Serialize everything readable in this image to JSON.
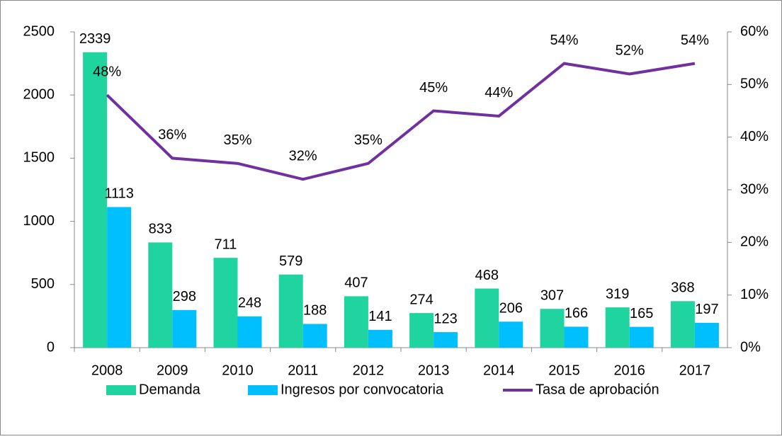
{
  "chart_data": {
    "type": "bar_line",
    "categories": [
      "2008",
      "2009",
      "2010",
      "2011",
      "2012",
      "2013",
      "2014",
      "2015",
      "2016",
      "2017"
    ],
    "series": [
      {
        "name": "Demanda",
        "type": "bar",
        "color": "#1fd49e",
        "values": [
          2339,
          833,
          711,
          579,
          407,
          274,
          468,
          307,
          319,
          368
        ]
      },
      {
        "name": "Ingresos por convocatoria",
        "type": "bar",
        "color": "#00bfff",
        "values": [
          1113,
          298,
          248,
          188,
          141,
          123,
          206,
          166,
          165,
          197
        ]
      },
      {
        "name": "Tasa de aprobación",
        "type": "line",
        "axis": "y2",
        "color": "#7030a0",
        "values": [
          48,
          36,
          35,
          32,
          35,
          45,
          44,
          54,
          52,
          54
        ],
        "value_labels": [
          "48%",
          "36%",
          "35%",
          "32%",
          "35%",
          "45%",
          "44%",
          "54%",
          "52%",
          "54%"
        ]
      }
    ],
    "ylim": [
      0,
      2500
    ],
    "yticks": [
      0,
      500,
      1000,
      1500,
      2000,
      2500
    ],
    "y2lim": [
      0,
      60
    ],
    "y2ticks": [
      {
        "value": 0,
        "label": "0%"
      },
      {
        "value": 10,
        "label": "10%"
      },
      {
        "value": 20,
        "label": "20%"
      },
      {
        "value": 30,
        "label": "30%"
      },
      {
        "value": 40,
        "label": "40%"
      },
      {
        "value": 50,
        "label": "50%"
      },
      {
        "value": 60,
        "label": "60%"
      }
    ],
    "legend": "bottom"
  }
}
